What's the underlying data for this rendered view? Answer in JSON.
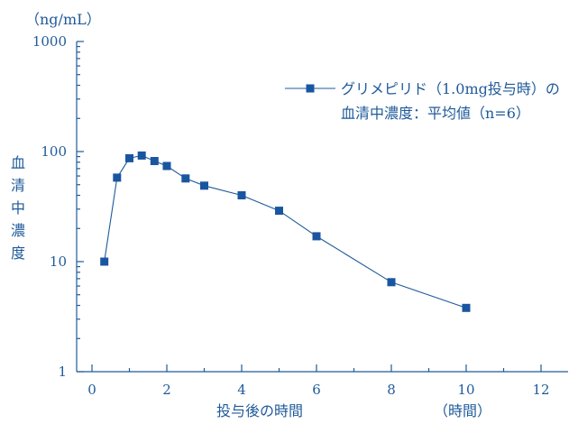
{
  "chart_data": {
    "type": "line",
    "y_scale": "log",
    "ylim": [
      1,
      1000
    ],
    "xlim": [
      -0.5,
      12.7
    ],
    "x_ticks": [
      0,
      2,
      4,
      6,
      8,
      10,
      12
    ],
    "x_tick_labels": [
      "0",
      "2",
      "4",
      "6",
      "8",
      "10",
      "12"
    ],
    "y_ticks": [
      1,
      10,
      100,
      1000
    ],
    "y_tick_labels": [
      "1",
      "10",
      "100",
      "1000"
    ],
    "y_unit": "（ng/mL）",
    "ylabel": "血清中濃度",
    "xlabel": "投与後の時間",
    "x_unit": "（時間）",
    "grid": false,
    "legend_position": "top-right",
    "legend_lines": [
      "グリメピリド（1.0mg投与時）の",
      "血清中濃度：平均値（n=6）"
    ],
    "series": [
      {
        "name": "グリメピリド（1.0mg投与時）の血清中濃度：平均値（n=6）",
        "x": [
          0.33,
          0.67,
          1.0,
          1.33,
          1.67,
          2.0,
          2.5,
          3.0,
          4.0,
          5.0,
          6.0,
          8.0,
          10.0
        ],
        "y": [
          10,
          58,
          87,
          92,
          82,
          74,
          57,
          49,
          40,
          29,
          17,
          6.5,
          3.8
        ]
      }
    ]
  },
  "colors": {
    "primary": "#1f5a9a",
    "marker": "#1a56a0"
  }
}
